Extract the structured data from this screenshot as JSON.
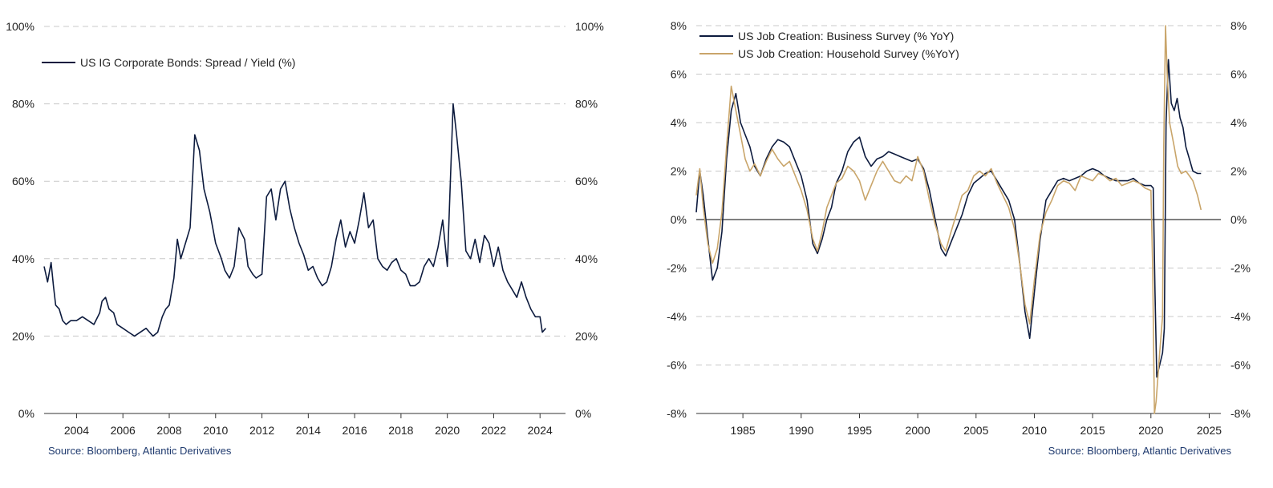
{
  "chart_data": [
    {
      "type": "line",
      "title": "",
      "xlabel": "",
      "ylabel": "",
      "xlim": [
        2002.6,
        2025.1
      ],
      "ylim": [
        0,
        100
      ],
      "y_ticks": [
        0,
        20,
        40,
        60,
        80,
        100
      ],
      "y_tick_labels": [
        "0%",
        "20%",
        "40%",
        "60%",
        "80%",
        "100%"
      ],
      "x_ticks": [
        2004,
        2006,
        2008,
        2010,
        2012,
        2014,
        2016,
        2018,
        2020,
        2022,
        2024
      ],
      "x_tick_labels": [
        "2004",
        "2006",
        "2008",
        "2010",
        "2012",
        "2014",
        "2016",
        "2018",
        "2020",
        "2022",
        "2024"
      ],
      "grid": true,
      "legend_position": "top-left",
      "colors": {
        "series": "#0d1b3e"
      },
      "source": "Source: Bloomberg, Atlantic Derivatives",
      "series": [
        {
          "name": "US IG Corporate Bonds: Spread / Yield (%)",
          "x": [
            2002.6,
            2002.75,
            2002.9,
            2003.0,
            2003.1,
            2003.25,
            2003.4,
            2003.55,
            2003.75,
            2004.0,
            2004.25,
            2004.5,
            2004.75,
            2005.0,
            2005.1,
            2005.25,
            2005.4,
            2005.6,
            2005.75,
            2006.0,
            2006.25,
            2006.5,
            2006.75,
            2007.0,
            2007.15,
            2007.3,
            2007.5,
            2007.7,
            2007.85,
            2008.0,
            2008.2,
            2008.35,
            2008.5,
            2008.6,
            2008.75,
            2008.9,
            2009.1,
            2009.3,
            2009.5,
            2009.75,
            2010.0,
            2010.25,
            2010.4,
            2010.6,
            2010.8,
            2011.0,
            2011.25,
            2011.4,
            2011.6,
            2011.75,
            2012.0,
            2012.2,
            2012.4,
            2012.6,
            2012.8,
            2013.0,
            2013.2,
            2013.4,
            2013.6,
            2013.8,
            2014.0,
            2014.2,
            2014.4,
            2014.6,
            2014.8,
            2015.0,
            2015.2,
            2015.4,
            2015.6,
            2015.8,
            2016.0,
            2016.2,
            2016.4,
            2016.6,
            2016.8,
            2017.0,
            2017.2,
            2017.4,
            2017.6,
            2017.8,
            2018.0,
            2018.2,
            2018.4,
            2018.6,
            2018.8,
            2019.0,
            2019.2,
            2019.4,
            2019.6,
            2019.8,
            2020.0,
            2020.1,
            2020.25,
            2020.4,
            2020.6,
            2020.8,
            2021.0,
            2021.2,
            2021.4,
            2021.6,
            2021.8,
            2022.0,
            2022.2,
            2022.4,
            2022.6,
            2022.8,
            2023.0,
            2023.2,
            2023.4,
            2023.6,
            2023.8,
            2024.0,
            2024.1,
            2024.25
          ],
          "y": [
            38,
            34,
            39,
            33,
            28,
            27,
            24,
            23,
            24,
            24,
            25,
            24,
            23,
            26,
            29,
            30,
            27,
            26,
            23,
            22,
            21,
            20,
            21,
            22,
            21,
            20,
            21,
            25,
            27,
            28,
            35,
            45,
            40,
            42,
            45,
            48,
            72,
            68,
            58,
            52,
            44,
            40,
            37,
            35,
            38,
            48,
            45,
            38,
            36,
            35,
            36,
            56,
            58,
            50,
            58,
            60,
            53,
            48,
            44,
            41,
            37,
            38,
            35,
            33,
            34,
            38,
            45,
            50,
            43,
            47,
            44,
            50,
            57,
            48,
            50,
            40,
            38,
            37,
            39,
            40,
            37,
            36,
            33,
            33,
            34,
            38,
            40,
            38,
            43,
            50,
            38,
            55,
            80,
            72,
            60,
            42,
            40,
            45,
            39,
            46,
            44,
            38,
            43,
            37,
            34,
            32,
            30,
            34,
            30,
            27,
            25,
            25,
            21,
            22
          ]
        }
      ]
    },
    {
      "type": "line",
      "title": "",
      "xlabel": "",
      "ylabel": "",
      "xlim": [
        1981,
        2026
      ],
      "ylim": [
        -8,
        8
      ],
      "y_ticks": [
        -8,
        -6,
        -4,
        -2,
        0,
        2,
        4,
        6,
        8
      ],
      "y_tick_labels": [
        "-8%",
        "-6%",
        "-4%",
        "-2%",
        "0%",
        "2%",
        "4%",
        "6%",
        "8%"
      ],
      "x_ticks": [
        1985,
        1990,
        1995,
        2000,
        2005,
        2010,
        2015,
        2020,
        2025
      ],
      "x_tick_labels": [
        "1985",
        "1990",
        "1995",
        "2000",
        "2005",
        "2010",
        "2015",
        "2020",
        "2025"
      ],
      "grid": true,
      "legend_position": "top-left",
      "colors": {
        "business": "#0d1b3e",
        "household": "#c9a56a"
      },
      "source": "Source: Bloomberg, Atlantic Derivatives",
      "series": [
        {
          "name": "US Job Creation: Business Survey (% YoY)",
          "x": [
            1981.0,
            1981.3,
            1981.6,
            1982.0,
            1982.4,
            1982.8,
            1983.2,
            1983.6,
            1984.0,
            1984.4,
            1984.8,
            1985.2,
            1985.6,
            1986.0,
            1986.5,
            1987.0,
            1987.5,
            1988.0,
            1988.5,
            1989.0,
            1989.5,
            1990.0,
            1990.5,
            1991.0,
            1991.4,
            1991.8,
            1992.2,
            1992.6,
            1993.0,
            1993.5,
            1994.0,
            1994.5,
            1995.0,
            1995.5,
            1996.0,
            1996.5,
            1997.0,
            1997.5,
            1998.0,
            1998.5,
            1999.0,
            1999.5,
            2000.0,
            2000.5,
            2001.0,
            2001.5,
            2002.0,
            2002.4,
            2002.8,
            2003.3,
            2003.8,
            2004.3,
            2004.8,
            2005.3,
            2005.8,
            2006.3,
            2006.8,
            2007.3,
            2007.8,
            2008.3,
            2008.8,
            2009.2,
            2009.6,
            2010.0,
            2010.5,
            2011.0,
            2011.5,
            2012.0,
            2012.5,
            2013.0,
            2013.5,
            2014.0,
            2014.5,
            2015.0,
            2015.5,
            2016.0,
            2016.5,
            2017.0,
            2017.5,
            2018.0,
            2018.5,
            2019.0,
            2019.5,
            2020.0,
            2020.2,
            2020.35,
            2020.5,
            2020.75,
            2021.0,
            2021.15,
            2021.3,
            2021.5,
            2021.75,
            2022.0,
            2022.25,
            2022.5,
            2022.75,
            2023.0,
            2023.3,
            2023.6,
            2024.0,
            2024.3
          ],
          "y": [
            0.3,
            2.0,
            1.0,
            -0.8,
            -2.5,
            -2.0,
            -0.5,
            2.5,
            4.5,
            5.2,
            4.0,
            3.5,
            3.0,
            2.2,
            1.8,
            2.5,
            3.0,
            3.3,
            3.2,
            3.0,
            2.4,
            1.8,
            0.8,
            -1.0,
            -1.4,
            -0.8,
            0.0,
            0.5,
            1.5,
            2.0,
            2.8,
            3.2,
            3.4,
            2.6,
            2.2,
            2.5,
            2.6,
            2.8,
            2.7,
            2.6,
            2.5,
            2.4,
            2.5,
            2.1,
            1.2,
            0.0,
            -1.2,
            -1.5,
            -1.0,
            -0.4,
            0.2,
            1.0,
            1.5,
            1.7,
            1.9,
            2.0,
            1.6,
            1.2,
            0.8,
            0.0,
            -2.0,
            -3.8,
            -4.9,
            -3.0,
            -0.8,
            0.8,
            1.2,
            1.6,
            1.7,
            1.6,
            1.7,
            1.8,
            2.0,
            2.1,
            2.0,
            1.8,
            1.7,
            1.6,
            1.6,
            1.6,
            1.7,
            1.5,
            1.4,
            1.4,
            1.3,
            -3.0,
            -6.5,
            -6.0,
            -5.5,
            -4.5,
            4.0,
            6.6,
            4.8,
            4.5,
            5.0,
            4.2,
            3.8,
            3.0,
            2.5,
            2.0,
            1.9,
            1.9
          ]
        },
        {
          "name": "US Job Creation: Household Survey (%YoY)",
          "x": [
            1981.0,
            1981.3,
            1981.6,
            1982.0,
            1982.4,
            1982.8,
            1983.2,
            1983.6,
            1984.0,
            1984.4,
            1984.8,
            1985.2,
            1985.6,
            1986.0,
            1986.5,
            1987.0,
            1987.5,
            1988.0,
            1988.5,
            1989.0,
            1989.5,
            1990.0,
            1990.5,
            1991.0,
            1991.4,
            1991.8,
            1992.2,
            1992.6,
            1993.0,
            1993.5,
            1994.0,
            1994.5,
            1995.0,
            1995.5,
            1996.0,
            1996.5,
            1997.0,
            1997.5,
            1998.0,
            1998.5,
            1999.0,
            1999.5,
            2000.0,
            2000.5,
            2001.0,
            2001.5,
            2002.0,
            2002.4,
            2002.8,
            2003.3,
            2003.8,
            2004.3,
            2004.8,
            2005.3,
            2005.8,
            2006.3,
            2006.8,
            2007.3,
            2007.8,
            2008.3,
            2008.8,
            2009.2,
            2009.6,
            2010.0,
            2010.5,
            2011.0,
            2011.5,
            2012.0,
            2012.5,
            2013.0,
            2013.5,
            2014.0,
            2014.5,
            2015.0,
            2015.5,
            2016.0,
            2016.5,
            2017.0,
            2017.5,
            2018.0,
            2018.5,
            2019.0,
            2019.5,
            2020.0,
            2020.15,
            2020.3,
            2020.45,
            2020.6,
            2020.75,
            2021.0,
            2021.1,
            2021.25,
            2021.4,
            2021.6,
            2021.8,
            2022.0,
            2022.3,
            2022.6,
            2023.0,
            2023.3,
            2023.6,
            2024.0,
            2024.3
          ],
          "y": [
            1.0,
            2.1,
            0.5,
            -1.0,
            -1.8,
            -1.2,
            0.3,
            3.0,
            5.5,
            4.5,
            3.5,
            2.5,
            2.0,
            2.3,
            1.8,
            2.4,
            2.9,
            2.5,
            2.2,
            2.4,
            1.8,
            1.2,
            0.4,
            -0.8,
            -1.3,
            -0.5,
            0.5,
            1.0,
            1.5,
            1.7,
            2.2,
            2.0,
            1.6,
            0.8,
            1.4,
            2.0,
            2.4,
            2.0,
            1.6,
            1.5,
            1.8,
            1.6,
            2.6,
            2.0,
            0.8,
            -0.2,
            -1.0,
            -1.3,
            -0.6,
            0.2,
            1.0,
            1.2,
            1.8,
            2.0,
            1.8,
            2.1,
            1.5,
            1.0,
            0.5,
            -0.4,
            -2.0,
            -3.5,
            -4.3,
            -2.5,
            -0.6,
            0.3,
            0.8,
            1.4,
            1.6,
            1.5,
            1.2,
            1.8,
            1.7,
            1.6,
            1.9,
            1.8,
            1.6,
            1.7,
            1.4,
            1.5,
            1.6,
            1.5,
            1.3,
            1.2,
            -2.0,
            -8.0,
            -7.5,
            -6.5,
            -5.5,
            -4.0,
            3.0,
            8.0,
            6.0,
            4.0,
            3.5,
            3.0,
            2.2,
            1.9,
            2.0,
            1.8,
            1.6,
            1.0,
            0.4
          ]
        }
      ]
    }
  ]
}
